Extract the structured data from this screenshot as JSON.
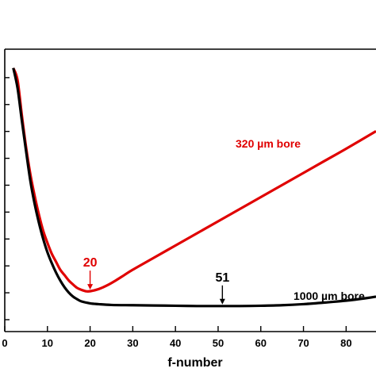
{
  "chart_data": {
    "type": "line",
    "title": "",
    "xlabel": "f-number",
    "ylabel": "",
    "xlim": [
      0,
      87
    ],
    "x_ticks": [
      0,
      10,
      20,
      30,
      40,
      50,
      60,
      70,
      80
    ],
    "y_tick_count": 11,
    "grid": false,
    "series": [
      {
        "name": "320 µm bore",
        "color": "#e00000",
        "x": [
          2,
          3,
          4,
          5,
          6,
          7,
          8,
          9,
          10,
          11,
          12,
          13,
          14,
          15,
          16,
          17,
          18,
          19,
          20,
          22,
          24,
          26,
          28,
          30,
          35,
          40,
          45,
          50,
          55,
          60,
          65,
          70,
          75,
          80,
          87
        ],
        "y": [
          9.8,
          9.35,
          8.05,
          6.85,
          5.85,
          5.05,
          4.35,
          3.75,
          3.3,
          2.9,
          2.6,
          2.3,
          2.1,
          1.9,
          1.75,
          1.62,
          1.55,
          1.5,
          1.5,
          1.58,
          1.72,
          1.9,
          2.1,
          2.3,
          2.75,
          3.2,
          3.65,
          4.1,
          4.55,
          5.0,
          5.45,
          5.9,
          6.35,
          6.8,
          7.45
        ]
      },
      {
        "name": "1000 µm bore",
        "color": "#000000",
        "x": [
          2,
          3,
          4,
          5,
          6,
          7,
          8,
          9,
          10,
          11,
          12,
          13,
          14,
          15,
          16,
          17,
          18,
          20,
          22,
          25,
          30,
          35,
          40,
          45,
          50,
          55,
          60,
          65,
          70,
          75,
          80,
          85,
          87
        ],
        "y": [
          9.8,
          9.05,
          7.85,
          6.7,
          5.6,
          4.75,
          4.05,
          3.45,
          2.95,
          2.55,
          2.2,
          1.9,
          1.65,
          1.45,
          1.3,
          1.2,
          1.12,
          1.05,
          1.02,
          0.99,
          0.98,
          0.97,
          0.96,
          0.95,
          0.95,
          0.95,
          0.96,
          0.98,
          1.02,
          1.08,
          1.15,
          1.25,
          1.3
        ]
      }
    ],
    "annotations": [
      {
        "text": "20",
        "x": 20,
        "y": 1.5,
        "color": "#e00000"
      },
      {
        "text": "51",
        "x": 51,
        "y": 0.95,
        "color": "#000000"
      }
    ]
  }
}
